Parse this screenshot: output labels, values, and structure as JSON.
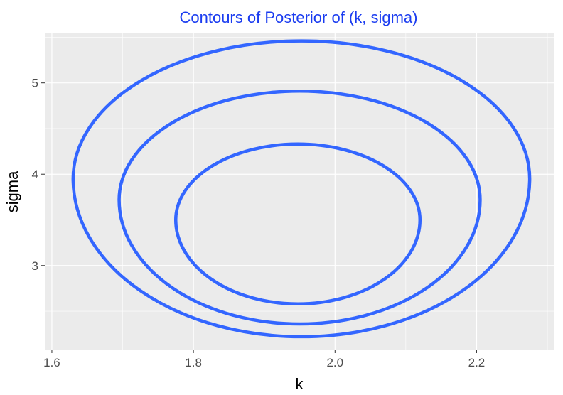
{
  "chart_data": {
    "type": "contour",
    "title": "Contours of Posterior of (k, sigma)",
    "xlabel": "k",
    "ylabel": "sigma",
    "xlim": [
      1.59,
      2.31
    ],
    "ylim": [
      2.08,
      5.55
    ],
    "x_ticks": [
      1.6,
      1.8,
      2.0,
      2.2
    ],
    "x_tick_labels": [
      "1.6",
      "1.8",
      "2.0",
      "2.2"
    ],
    "y_ticks": [
      3,
      4,
      5
    ],
    "y_tick_labels": [
      "3",
      "4",
      "5"
    ],
    "grid": true,
    "line_color": "#3366ff",
    "panel_background": "#ebebeb",
    "contours": [
      {
        "level": "outer",
        "k_min": 1.63,
        "k_max": 2.275,
        "sigma_min": 2.22,
        "sigma_max": 5.46,
        "k_center": 1.95,
        "sigma_at_extremes": 3.95
      },
      {
        "level": "middle",
        "k_min": 1.695,
        "k_max": 2.205,
        "sigma_min": 2.36,
        "sigma_max": 4.91,
        "k_center": 1.95,
        "sigma_at_extremes": 3.72
      },
      {
        "level": "inner",
        "k_min": 1.775,
        "k_max": 2.12,
        "sigma_min": 2.58,
        "sigma_max": 4.33,
        "k_center": 1.95,
        "sigma_at_extremes": 3.5
      }
    ]
  }
}
